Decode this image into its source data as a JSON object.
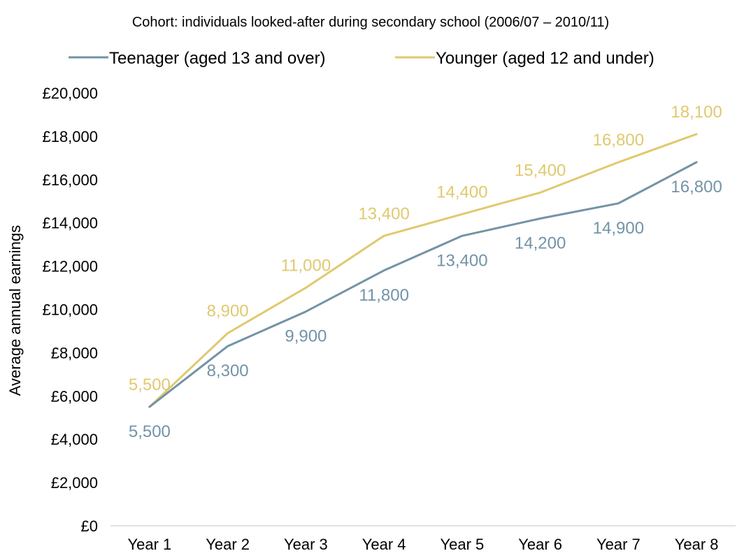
{
  "chart_data": {
    "type": "line",
    "title": "Cohort: individuals looked-after during secondary school (2006/07 – 2010/11)",
    "xlabel": "",
    "ylabel": "Average annual earnings",
    "categories": [
      "Year 1",
      "Year 2",
      "Year 3",
      "Year 4",
      "Year 5",
      "Year 6",
      "Year 7",
      "Year 8"
    ],
    "yticks": [
      "£0",
      "£2,000",
      "£4,000",
      "£6,000",
      "£8,000",
      "£10,000",
      "£12,000",
      "£14,000",
      "£16,000",
      "£18,000",
      "£20,000"
    ],
    "ylim": [
      0,
      20000
    ],
    "grid": false,
    "legend": "top",
    "series": [
      {
        "name": "Teenager (aged 13 and over)",
        "color": "#7393a7",
        "values": [
          5500,
          8300,
          9900,
          11800,
          13400,
          14200,
          14900,
          16800
        ],
        "labels": [
          "5,500",
          "8,300",
          "9,900",
          "11,800",
          "13,400",
          "14,200",
          "14,900",
          "16,800"
        ]
      },
      {
        "name": "Younger (aged 12 and under)",
        "color": "#e0c96e",
        "values": [
          5500,
          8900,
          11000,
          13400,
          14400,
          15400,
          16800,
          18100
        ],
        "labels": [
          "5,500",
          "8,900",
          "11,000",
          "13,400",
          "14,400",
          "15,400",
          "16,800",
          "18,100"
        ]
      }
    ]
  }
}
